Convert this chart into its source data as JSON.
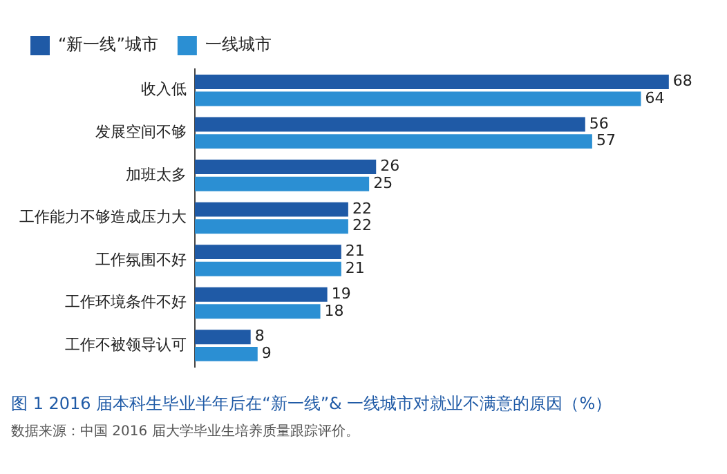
{
  "chart_data": {
    "type": "bar",
    "orientation": "horizontal",
    "title": "图 1 2016 届本科生毕业半年后在“新一线”& 一线城市对就业不满意的原因（%）",
    "annotations": [
      "数据来源：中国 2016 届大学毕业生培养质量跟踪评价。"
    ],
    "categories": [
      "收入低",
      "发展空间不够",
      "加班太多",
      "工作能力不够造成压力大",
      "工作氛围不好",
      "工作环境条件不好",
      "工作不被领导认可"
    ],
    "series": [
      {
        "name": "“新一线”城市",
        "color": "#1f5aa6",
        "values": [
          68,
          56,
          26,
          22,
          21,
          19,
          8
        ]
      },
      {
        "name": "一线城市",
        "color": "#2b8fd3",
        "values": [
          64,
          57,
          25,
          22,
          21,
          18,
          9
        ]
      }
    ],
    "data_labels": true,
    "legend": "top left",
    "grid": false
  }
}
